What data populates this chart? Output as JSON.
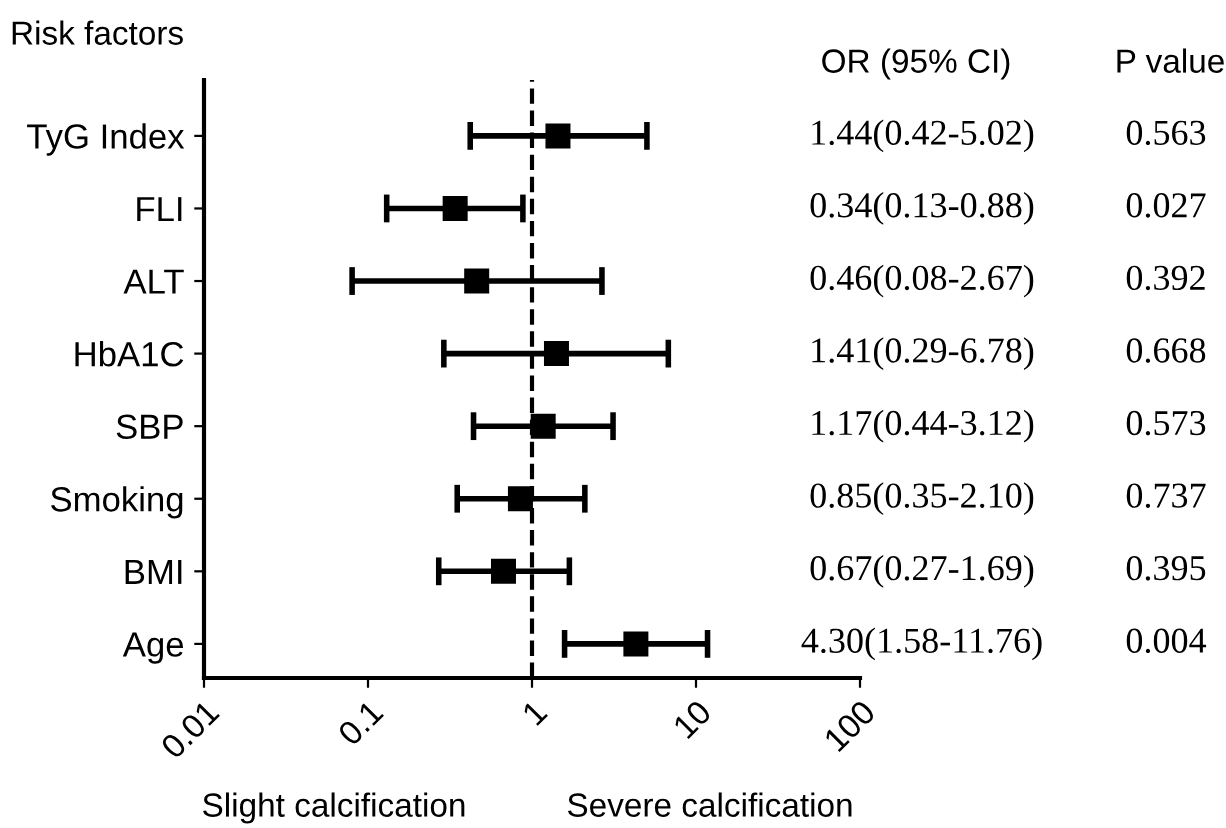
{
  "chart_data": {
    "type": "scatter",
    "orientation": "horizontal",
    "ylabel": "Risk factors",
    "categories": [
      "TyG Index",
      "FLI",
      "ALT",
      "HbA1C",
      "SBP",
      "Smoking",
      "BMI",
      "Age"
    ],
    "values": [
      1.44,
      0.34,
      0.46,
      1.41,
      1.17,
      0.85,
      0.67,
      4.3
    ],
    "errors": [
      [
        0.42,
        5.02
      ],
      [
        0.13,
        0.88
      ],
      [
        0.08,
        2.67
      ],
      [
        0.29,
        6.78
      ],
      [
        0.44,
        3.12
      ],
      [
        0.35,
        2.1
      ],
      [
        0.27,
        1.69
      ],
      [
        1.58,
        11.76
      ]
    ],
    "value_labels": [
      "1.44(0.42-5.02)",
      "0.34(0.13-0.88)",
      "0.46(0.08-2.67)",
      "1.41(0.29-6.78)",
      "1.17(0.44-3.12)",
      "0.85(0.35-2.10)",
      "0.67(0.27-1.69)",
      "4.30(1.58-11.76)"
    ],
    "color": "#000000",
    "marker": "square",
    "log": "x",
    "xlim": [
      0.01,
      100
    ],
    "xticks": [
      0.01,
      0.1,
      1,
      10,
      100
    ],
    "ref_lines": [
      {
        "axis": "x",
        "value": 1,
        "line_style": "dashed",
        "color": "#000000"
      }
    ],
    "annotations": [
      "OR (95% CI)",
      "P value",
      "Slight calcification",
      "Severe calcification",
      "0.563",
      "0.027",
      "0.392",
      "0.668",
      "0.573",
      "0.737",
      "0.395",
      "0.004"
    ],
    "grid": false
  }
}
